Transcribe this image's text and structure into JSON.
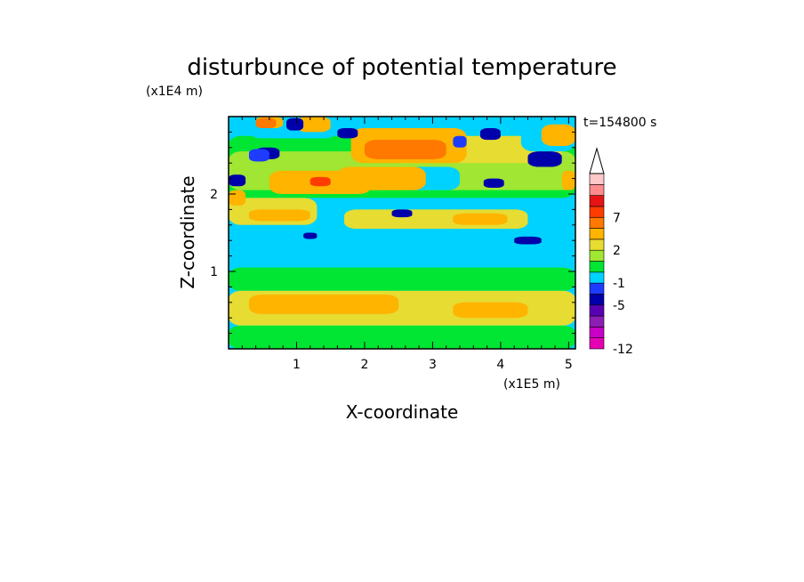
{
  "chart_data": {
    "type": "heatmap",
    "title": "disturbunce of potential temperature",
    "xlabel": "X-coordinate",
    "ylabel": "Z-coordinate",
    "x_unit": "(x1E5 m)",
    "y_unit": "(x1E4 m)",
    "time_label": "t=154800 s",
    "xlim": [
      0,
      5.1
    ],
    "ylim": [
      0,
      3.0
    ],
    "x_ticks": [
      "1",
      "2",
      "3",
      "4",
      "5"
    ],
    "y_ticks": [
      "1",
      "2"
    ],
    "colorbar": {
      "levels": [
        {
          "color": "#e600b4",
          "label": "-12"
        },
        {
          "color": "#c800c8",
          "label": ""
        },
        {
          "color": "#8c1eb4",
          "label": ""
        },
        {
          "color": "#5a00b4",
          "label": ""
        },
        {
          "color": "#0000aa",
          "label": "-5"
        },
        {
          "color": "#1e3cff",
          "label": ""
        },
        {
          "color": "#00d2ff",
          "label": "-1"
        },
        {
          "color": "#00e632",
          "label": ""
        },
        {
          "color": "#a0e632",
          "label": ""
        },
        {
          "color": "#e6dc32",
          "label": "2"
        },
        {
          "color": "#ffb400",
          "label": ""
        },
        {
          "color": "#ff7800",
          "label": ""
        },
        {
          "color": "#ff3c00",
          "label": "7"
        },
        {
          "color": "#e61414",
          "label": ""
        },
        {
          "color": "#ff8c8c",
          "label": ""
        },
        {
          "color": "#ffc8c8",
          "label": ""
        }
      ]
    },
    "regions": [
      {
        "level": 7,
        "x": [
          0.0,
          5.1
        ],
        "y": [
          1.95,
          2.75
        ]
      },
      {
        "level": 8,
        "x": [
          0.0,
          5.1
        ],
        "y": [
          2.05,
          2.55
        ]
      },
      {
        "level": 6,
        "x": [
          0.0,
          5.1
        ],
        "y": [
          1.05,
          1.55
        ]
      },
      {
        "level": 7,
        "x": [
          0.0,
          5.1
        ],
        "y": [
          0.75,
          1.05
        ]
      },
      {
        "level": 9,
        "x": [
          0.0,
          5.1
        ],
        "y": [
          0.3,
          0.75
        ]
      },
      {
        "level": 7,
        "x": [
          0.0,
          5.1
        ],
        "y": [
          0.0,
          0.3
        ]
      },
      {
        "level": 9,
        "x": [
          0.0,
          1.3
        ],
        "y": [
          1.6,
          1.95
        ]
      },
      {
        "level": 10,
        "x": [
          0.3,
          1.2
        ],
        "y": [
          1.65,
          1.8
        ]
      },
      {
        "level": 9,
        "x": [
          1.7,
          4.4
        ],
        "y": [
          1.55,
          1.8
        ]
      },
      {
        "level": 9,
        "x": [
          2.3,
          4.9
        ],
        "y": [
          2.4,
          2.75
        ]
      },
      {
        "level": 6,
        "x": [
          0.3,
          1.6
        ],
        "y": [
          2.72,
          3.0
        ]
      },
      {
        "level": 6,
        "x": [
          4.3,
          5.1
        ],
        "y": [
          2.55,
          3.0
        ]
      },
      {
        "level": 6,
        "x": [
          2.5,
          3.4
        ],
        "y": [
          2.05,
          2.35
        ]
      },
      {
        "level": 10,
        "x": [
          1.6,
          2.9
        ],
        "y": [
          2.05,
          2.35
        ]
      },
      {
        "level": 10,
        "x": [
          1.8,
          3.5
        ],
        "y": [
          2.4,
          2.85
        ]
      },
      {
        "level": 11,
        "x": [
          2.0,
          3.2
        ],
        "y": [
          2.45,
          2.7
        ]
      },
      {
        "level": 10,
        "x": [
          0.6,
          2.1
        ],
        "y": [
          2.0,
          2.3
        ]
      },
      {
        "level": 12,
        "x": [
          1.2,
          1.5
        ],
        "y": [
          2.1,
          2.22
        ]
      },
      {
        "level": 10,
        "x": [
          0.0,
          0.25
        ],
        "y": [
          1.85,
          2.05
        ]
      },
      {
        "level": 10,
        "x": [
          0.4,
          0.8
        ],
        "y": [
          2.85,
          3.0
        ]
      },
      {
        "level": 11,
        "x": [
          0.4,
          0.7
        ],
        "y": [
          2.85,
          2.98
        ]
      },
      {
        "level": 10,
        "x": [
          1.0,
          1.5
        ],
        "y": [
          2.8,
          3.0
        ]
      },
      {
        "level": 10,
        "x": [
          4.6,
          5.1
        ],
        "y": [
          2.62,
          2.9
        ]
      },
      {
        "level": 10,
        "x": [
          4.9,
          5.1
        ],
        "y": [
          2.05,
          2.3
        ]
      },
      {
        "level": 10,
        "x": [
          3.3,
          4.1
        ],
        "y": [
          1.6,
          1.75
        ]
      },
      {
        "level": 10,
        "x": [
          0.3,
          2.5
        ],
        "y": [
          0.45,
          0.7
        ]
      },
      {
        "level": 10,
        "x": [
          3.3,
          4.4
        ],
        "y": [
          0.4,
          0.6
        ]
      },
      {
        "level": 4,
        "x": [
          0.0,
          0.25
        ],
        "y": [
          2.1,
          2.25
        ]
      },
      {
        "level": 4,
        "x": [
          0.4,
          0.75
        ],
        "y": [
          2.45,
          2.6
        ]
      },
      {
        "level": 4,
        "x": [
          0.85,
          1.1
        ],
        "y": [
          2.82,
          2.98
        ]
      },
      {
        "level": 4,
        "x": [
          1.6,
          1.9
        ],
        "y": [
          2.72,
          2.85
        ]
      },
      {
        "level": 4,
        "x": [
          3.7,
          4.0
        ],
        "y": [
          2.7,
          2.85
        ]
      },
      {
        "level": 4,
        "x": [
          3.75,
          4.05
        ],
        "y": [
          2.08,
          2.2
        ]
      },
      {
        "level": 4,
        "x": [
          4.4,
          4.9
        ],
        "y": [
          2.35,
          2.55
        ]
      },
      {
        "level": 4,
        "x": [
          2.4,
          2.7
        ],
        "y": [
          1.7,
          1.8
        ]
      },
      {
        "level": 4,
        "x": [
          1.1,
          1.3
        ],
        "y": [
          1.42,
          1.5
        ]
      },
      {
        "level": 4,
        "x": [
          4.2,
          4.6
        ],
        "y": [
          1.35,
          1.45
        ]
      },
      {
        "level": 5,
        "x": [
          0.3,
          0.6
        ],
        "y": [
          2.42,
          2.58
        ]
      },
      {
        "level": 5,
        "x": [
          3.3,
          3.5
        ],
        "y": [
          2.6,
          2.75
        ]
      }
    ]
  }
}
